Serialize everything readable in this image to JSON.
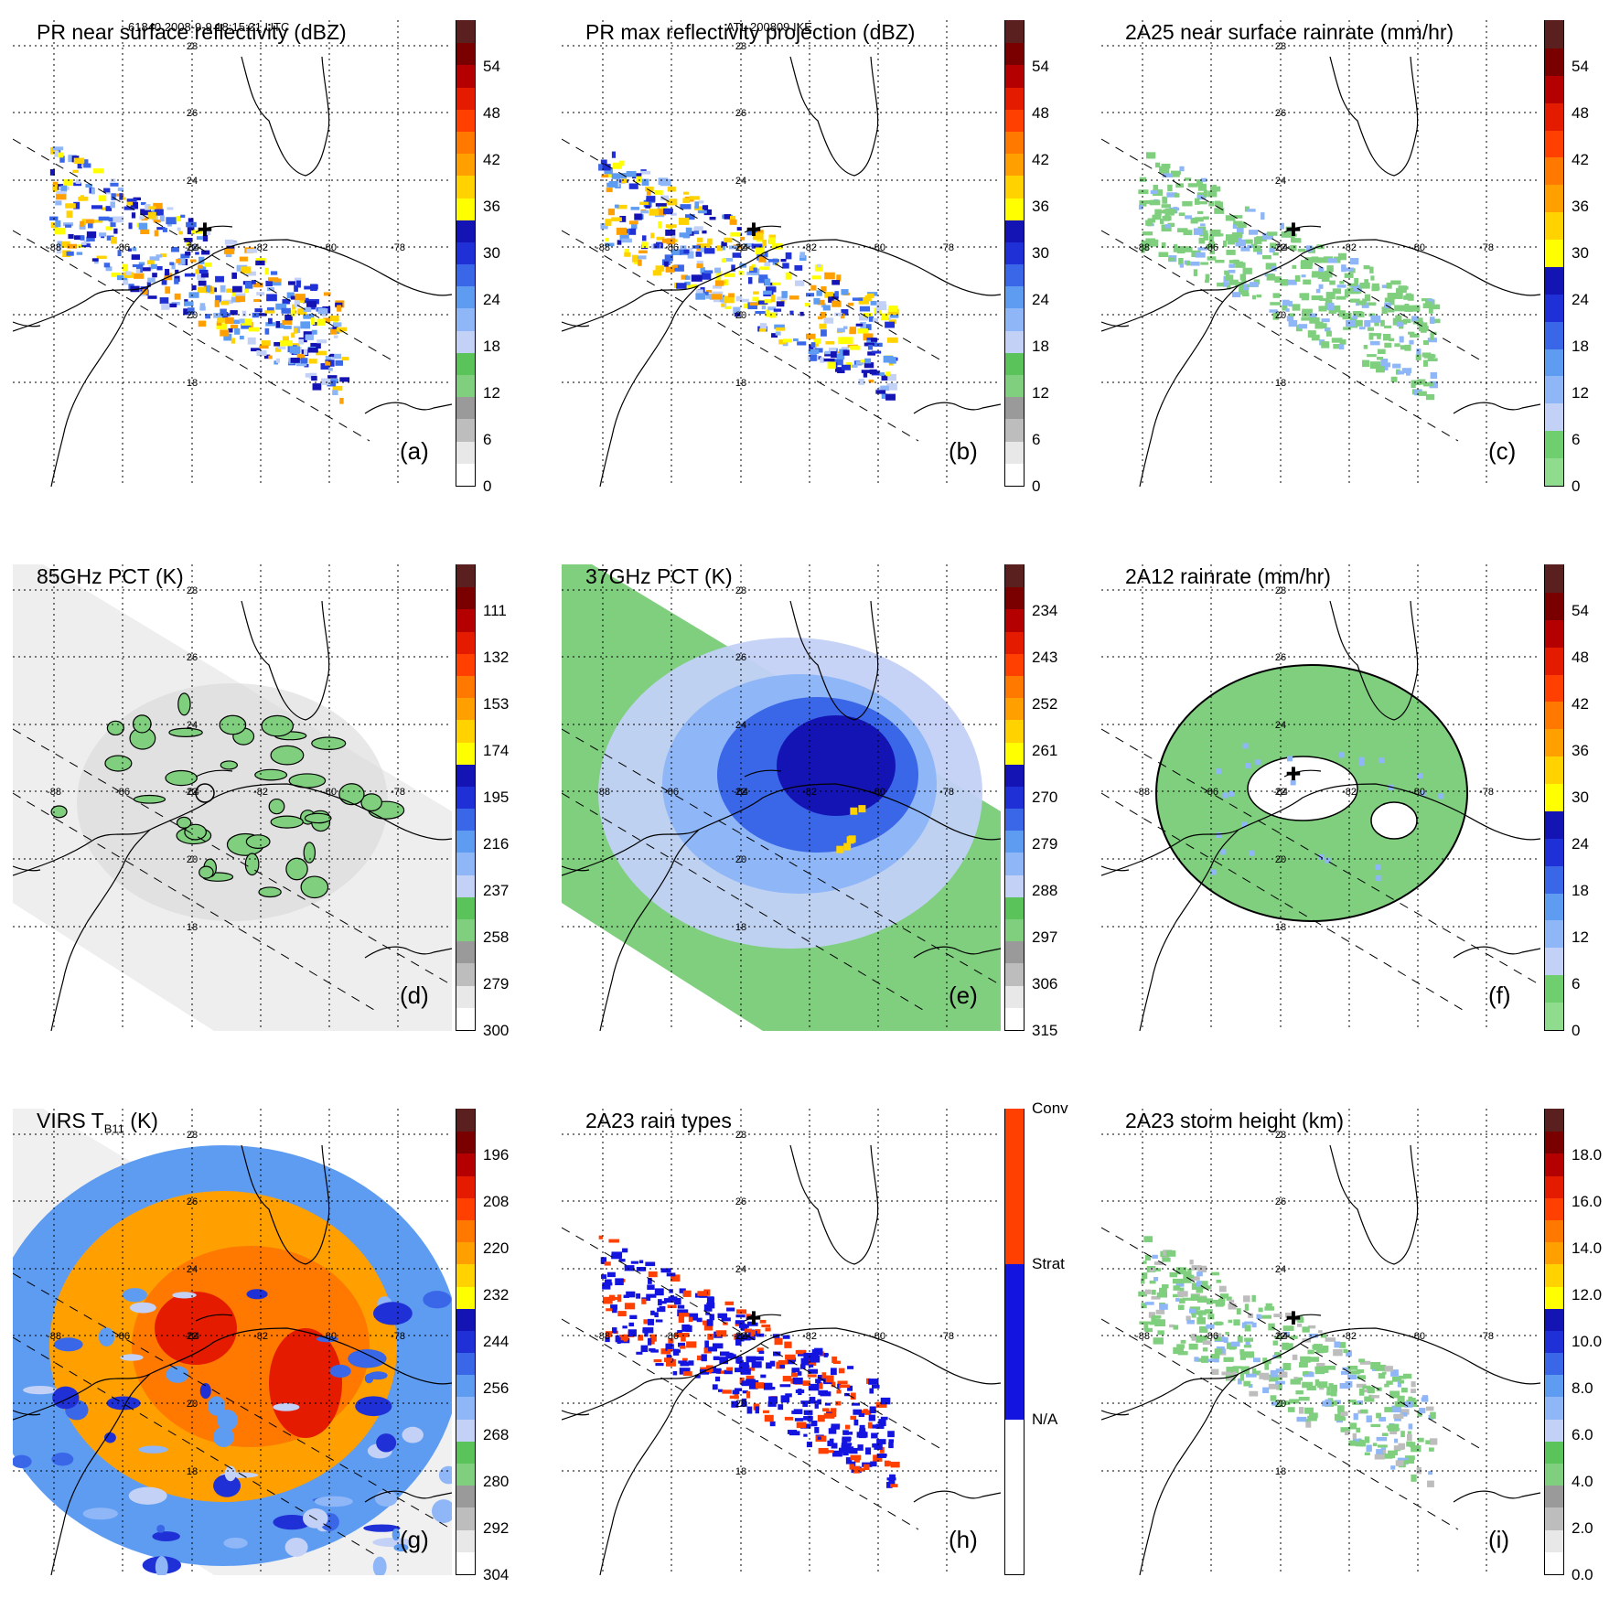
{
  "header": {
    "left": "61840 2008-9-9 18:15:31 UTC",
    "center": "ATL 200809 IKE"
  },
  "map": {
    "lat_labels": [
      "28",
      "26",
      "24",
      "22",
      "20",
      "18"
    ],
    "lon_labels": [
      "-88",
      "-86",
      "-84",
      "-82",
      "-80",
      "-78"
    ]
  },
  "panels": [
    {
      "id": "a",
      "title": "PR near surface reflectivity (dBZ)",
      "label": "(a)",
      "swath": "narrow",
      "field": "pr_refl",
      "colorbar": {
        "ticks": [
          "54",
          "48",
          "42",
          "36",
          "30",
          "24",
          "18",
          "12",
          "6",
          "0"
        ],
        "colors": [
          "#ffffff",
          "#e8e8e8",
          "#bdbdbd",
          "#9a9a9a",
          "#7fcf7f",
          "#5ac35a",
          "#c3d1f7",
          "#8fb6f7",
          "#5e9cf2",
          "#3a66e8",
          "#1f31d6",
          "#1414b4",
          "#ffff00",
          "#ffd200",
          "#ffa000",
          "#ff7800",
          "#ff4000",
          "#e51b00",
          "#b40000",
          "#7a0000",
          "#5a1f1f"
        ]
      }
    },
    {
      "id": "b",
      "title": "PR max reflectivity projection (dBZ)",
      "label": "(b)",
      "swath": "narrow",
      "field": "pr_max",
      "colorbar": {
        "ticks": [
          "54",
          "48",
          "42",
          "36",
          "30",
          "24",
          "18",
          "12",
          "6",
          "0"
        ],
        "colors": [
          "#ffffff",
          "#e8e8e8",
          "#bdbdbd",
          "#9a9a9a",
          "#7fcf7f",
          "#5ac35a",
          "#c3d1f7",
          "#8fb6f7",
          "#5e9cf2",
          "#3a66e8",
          "#1f31d6",
          "#1414b4",
          "#ffff00",
          "#ffd200",
          "#ffa000",
          "#ff7800",
          "#ff4000",
          "#e51b00",
          "#b40000",
          "#7a0000",
          "#5a1f1f"
        ]
      }
    },
    {
      "id": "c",
      "title": "2A25 near surface rainrate (mm/hr)",
      "label": "(c)",
      "swath": "narrow",
      "field": "rain_2a25",
      "colorbar": {
        "ticks": [
          "54",
          "48",
          "42",
          "36",
          "30",
          "24",
          "18",
          "12",
          "6",
          "0"
        ],
        "colors": [
          "#8fdc8f",
          "#6fcf6f",
          "#c3d1f7",
          "#8fb6f7",
          "#5e9cf2",
          "#3a66e8",
          "#1f31d6",
          "#1414b4",
          "#ffff00",
          "#ffd200",
          "#ffa000",
          "#ff7800",
          "#ff4000",
          "#e51b00",
          "#b40000",
          "#7a0000",
          "#5a1f1f"
        ]
      }
    },
    {
      "id": "d",
      "title": "85GHz PCT (K)",
      "label": "(d)",
      "swath": "wide",
      "field": "pct85",
      "colorbar": {
        "ticks": [
          "111",
          "132",
          "153",
          "174",
          "195",
          "216",
          "237",
          "258",
          "279",
          "300"
        ],
        "colors": [
          "#ffffff",
          "#e8e8e8",
          "#bdbdbd",
          "#9a9a9a",
          "#7fcf7f",
          "#5ac35a",
          "#c3d1f7",
          "#8fb6f7",
          "#5e9cf2",
          "#3a66e8",
          "#1f31d6",
          "#1414b4",
          "#ffff00",
          "#ffd200",
          "#ffa000",
          "#ff7800",
          "#ff4000",
          "#e51b00",
          "#b40000",
          "#7a0000",
          "#5a1f1f"
        ]
      }
    },
    {
      "id": "e",
      "title": "37GHz PCT (K)",
      "label": "(e)",
      "swath": "wide",
      "field": "pct37",
      "colorbar": {
        "ticks": [
          "234",
          "243",
          "252",
          "261",
          "270",
          "279",
          "288",
          "297",
          "306",
          "315"
        ],
        "colors": [
          "#ffffff",
          "#e8e8e8",
          "#bdbdbd",
          "#9a9a9a",
          "#7fcf7f",
          "#5ac35a",
          "#c3d1f7",
          "#8fb6f7",
          "#5e9cf2",
          "#3a66e8",
          "#1f31d6",
          "#1414b4",
          "#ffff00",
          "#ffd200",
          "#ffa000",
          "#ff7800",
          "#ff4000",
          "#e51b00",
          "#b40000",
          "#7a0000",
          "#5a1f1f"
        ]
      }
    },
    {
      "id": "f",
      "title": "2A12 rainrate (mm/hr)",
      "label": "(f)",
      "swath": "none",
      "field": "rain_2a12",
      "colorbar": {
        "ticks": [
          "54",
          "48",
          "42",
          "36",
          "30",
          "24",
          "18",
          "12",
          "6",
          "0"
        ],
        "colors": [
          "#8fdc8f",
          "#6fcf6f",
          "#c3d1f7",
          "#8fb6f7",
          "#5e9cf2",
          "#3a66e8",
          "#1f31d6",
          "#1414b4",
          "#ffff00",
          "#ffd200",
          "#ffa000",
          "#ff7800",
          "#ff4000",
          "#e51b00",
          "#b40000",
          "#7a0000",
          "#5a1f1f"
        ]
      }
    },
    {
      "id": "g",
      "title": "VIRS T",
      "title_sub": "B11",
      "title_tail": " (K)",
      "label": "(g)",
      "swath": "wide",
      "field": "virs",
      "colorbar": {
        "ticks": [
          "196",
          "208",
          "220",
          "232",
          "244",
          "256",
          "268",
          "280",
          "292",
          "304"
        ],
        "colors": [
          "#ffffff",
          "#e8e8e8",
          "#bdbdbd",
          "#9a9a9a",
          "#7fcf7f",
          "#5ac35a",
          "#c3d1f7",
          "#8fb6f7",
          "#5e9cf2",
          "#3a66e8",
          "#1f31d6",
          "#1414b4",
          "#ffff00",
          "#ffd200",
          "#ffa000",
          "#ff7800",
          "#ff4000",
          "#e51b00",
          "#b40000",
          "#7a0000",
          "#5a1f1f"
        ]
      }
    },
    {
      "id": "h",
      "title": "2A23 rain types",
      "label": "(h)",
      "swath": "narrow",
      "field": "raintype",
      "colorbar": {
        "ticks": [
          "Conv",
          "Strat",
          "N/A"
        ],
        "colors": [
          "#ffffff",
          "#1414e0",
          "#ff4000"
        ],
        "categorical": true
      }
    },
    {
      "id": "i",
      "title": "2A23 storm height (km)",
      "label": "(i)",
      "swath": "narrow",
      "field": "height",
      "colorbar": {
        "ticks": [
          "18.0",
          "16.0",
          "14.0",
          "12.0",
          "10.0",
          "8.0",
          "6.0",
          "4.0",
          "2.0",
          "0.0"
        ],
        "colors": [
          "#ffffff",
          "#e8e8e8",
          "#bdbdbd",
          "#9a9a9a",
          "#7fcf7f",
          "#5ac35a",
          "#c3d1f7",
          "#8fb6f7",
          "#5e9cf2",
          "#3a66e8",
          "#1f31d6",
          "#1414b4",
          "#ffff00",
          "#ffd200",
          "#ffa000",
          "#ff7800",
          "#ff4000",
          "#e51b00",
          "#b40000",
          "#7a0000",
          "#5a1f1f"
        ]
      }
    }
  ]
}
